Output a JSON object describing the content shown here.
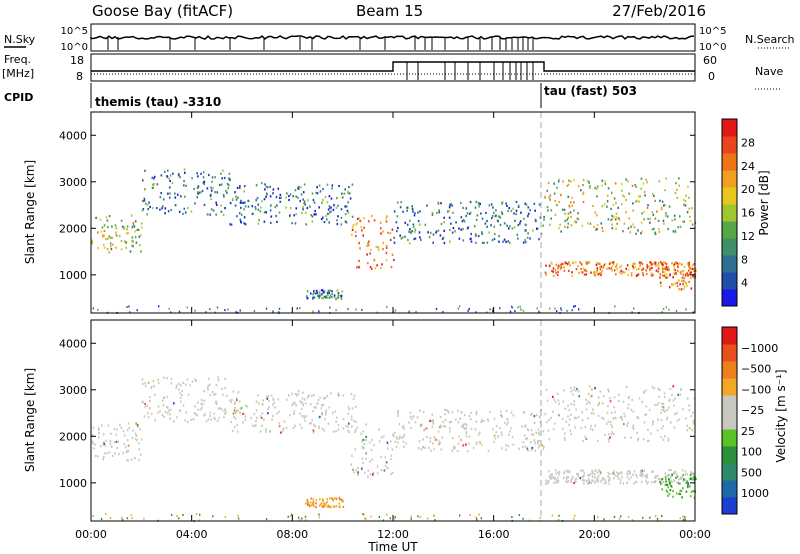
{
  "header": {
    "station": "Goose Bay (fitACF)",
    "beam": "Beam 15",
    "date": "27/Feb/2016"
  },
  "strip_labels": {
    "nsky": "N.Sky",
    "nsky_ticks": [
      "10^5",
      "10^0"
    ],
    "nsearch": "N.Search",
    "nsearch_ticks": [
      "10^5",
      "10^0"
    ],
    "freq": "Freq.",
    "freq_unit": "[MHz]",
    "freq_ticks": [
      "18",
      "8"
    ],
    "nave": "Nave",
    "nave_ticks": [
      "60",
      "0"
    ],
    "cpid": "CPID",
    "cpid_segments": [
      "themis (tau) -3310",
      "tau (fast) 503"
    ]
  },
  "chart_data": [
    {
      "type": "heatmap",
      "name": "power",
      "ylabel": "Slant Range [km]",
      "xlabel": "",
      "xlim": [
        0,
        24
      ],
      "ylim": [
        180,
        4500
      ],
      "x_ticks": [
        "00:00",
        "04:00",
        "08:00",
        "12:00",
        "16:00",
        "20:00",
        "00:00"
      ],
      "y_ticks": [
        1000,
        2000,
        3000,
        4000
      ],
      "colorbar": {
        "label": "Power [dB]",
        "ticks": [
          4,
          8,
          12,
          16,
          20,
          24,
          28
        ],
        "colors": [
          "#1a1ae6",
          "#1f4fa8",
          "#2f6f8f",
          "#3f8f6a",
          "#55a845",
          "#a0c52e",
          "#e8c81c",
          "#f0a020",
          "#ef7417",
          "#e8451c",
          "#e01a1a"
        ]
      },
      "echo_bands": [
        {
          "t": [
            0.0,
            2.0
          ],
          "r": [
            1500,
            2300
          ],
          "level": "mid"
        },
        {
          "t": [
            2.0,
            5.5
          ],
          "r": [
            2300,
            3300
          ],
          "level": "low"
        },
        {
          "t": [
            5.5,
            10.5
          ],
          "r": [
            2100,
            3000
          ],
          "level": "low"
        },
        {
          "t": [
            10.3,
            12.0
          ],
          "r": [
            1150,
            2300
          ],
          "level": "high"
        },
        {
          "t": [
            12.0,
            18.0
          ],
          "r": [
            1700,
            2600
          ],
          "level": "low"
        },
        {
          "t": [
            18.0,
            24.0
          ],
          "r": [
            1000,
            1300
          ],
          "level": "high"
        },
        {
          "t": [
            18.0,
            24.0
          ],
          "r": [
            1900,
            3100
          ],
          "level": "mid"
        },
        {
          "t": [
            22.5,
            24.0
          ],
          "r": [
            700,
            1200
          ],
          "level": "high"
        },
        {
          "t": [
            8.5,
            10.0
          ],
          "r": [
            500,
            700
          ],
          "level": "low"
        }
      ]
    },
    {
      "type": "heatmap",
      "name": "velocity",
      "ylabel": "Slant Range [km]",
      "xlabel": "Time UT",
      "xlim": [
        0,
        24
      ],
      "ylim": [
        180,
        4500
      ],
      "x_ticks": [
        "00:00",
        "04:00",
        "08:00",
        "12:00",
        "16:00",
        "20:00",
        "00:00"
      ],
      "y_ticks": [
        1000,
        2000,
        3000,
        4000
      ],
      "colorbar": {
        "label": "Velocity [m s⁻¹]",
        "ticks": [
          "1000",
          "500",
          "100",
          "25",
          "−25",
          "−100",
          "−500",
          "−1000"
        ],
        "colors": [
          "#1a3fd1",
          "#1d6aa6",
          "#2f8a6a",
          "#2c8f3a",
          "#59c227",
          "#c8c8c0",
          "#c8c8c0",
          "#f2a825",
          "#ef7e1c",
          "#e8501c",
          "#e01a1a"
        ]
      },
      "echo_bands": [
        {
          "t": [
            0.0,
            2.0
          ],
          "r": [
            1500,
            2300
          ],
          "level": "ground"
        },
        {
          "t": [
            2.0,
            5.5
          ],
          "r": [
            2300,
            3300
          ],
          "level": "ground"
        },
        {
          "t": [
            5.5,
            10.5
          ],
          "r": [
            2100,
            3000
          ],
          "level": "ground"
        },
        {
          "t": [
            10.3,
            12.0
          ],
          "r": [
            1150,
            2300
          ],
          "level": "ground"
        },
        {
          "t": [
            12.0,
            18.0
          ],
          "r": [
            1700,
            2600
          ],
          "level": "ground"
        },
        {
          "t": [
            18.0,
            24.0
          ],
          "r": [
            1000,
            1300
          ],
          "level": "ground"
        },
        {
          "t": [
            18.0,
            24.0
          ],
          "r": [
            1900,
            3100
          ],
          "level": "ground"
        },
        {
          "t": [
            22.5,
            24.0
          ],
          "r": [
            700,
            1200
          ],
          "level": "positive"
        },
        {
          "t": [
            8.5,
            10.0
          ],
          "r": [
            500,
            700
          ],
          "level": "negative"
        }
      ]
    }
  ]
}
